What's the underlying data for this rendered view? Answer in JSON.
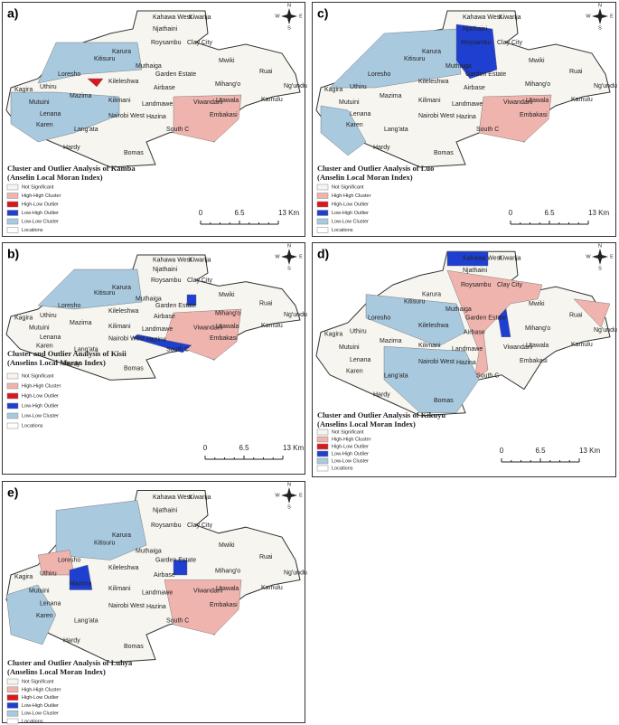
{
  "panels": [
    {
      "label": "a)",
      "title": [
        "Cluster and Outlier Analysis of Kamba",
        "(Anselin Local Moran Index)"
      ]
    },
    {
      "label": "c)",
      "title": [
        "Cluster and Outlier Analysis of Luo",
        "(Anselin Local Moran Index)"
      ]
    },
    {
      "label": "b)",
      "title": [
        "Cluster and Outlier Analysis of Kisii",
        "(Anselins Local Moran Index)"
      ]
    },
    {
      "label": "d)",
      "title": [
        "Cluster and Outlier Analysis of Kikuyu",
        "(Anselins Local Moran Index)"
      ]
    },
    {
      "label": "e)",
      "title": [
        "Cluster and Outlier Analysis of Luhya",
        "(Anselins Local Moran Index)"
      ]
    }
  ],
  "legend": [
    "Not Significant",
    "High-High Cluster",
    "High-Low Outlier",
    "Low-High Outlier",
    "Low-Low Cluster",
    "Locations"
  ],
  "scale": [
    "0",
    "6.5",
    "13 Km"
  ],
  "compass": [
    "N",
    "S",
    "E",
    "W"
  ],
  "places": [
    "Kahawa West",
    "Kiwanja",
    "Njathaini",
    "Roysambu",
    "Clay City",
    "Karura",
    "Kitisuru",
    "Muthaiga",
    "Mwiki",
    "Ruai",
    "Ng'undu",
    "Garden Estate",
    "Loresho",
    "Kileleshwa",
    "Kagira",
    "Uthiru",
    "Mutuini",
    "Mazima",
    "Kilimani",
    "Airbase",
    "Mihang'o",
    "Kamulu",
    "Utawala",
    "Lenana",
    "Landmawe",
    "Viwandani",
    "Nairobi West",
    "Hazina",
    "Embakasi",
    "Karen",
    "South C",
    "Lang'ata",
    "Hardy",
    "Bomas"
  ]
}
